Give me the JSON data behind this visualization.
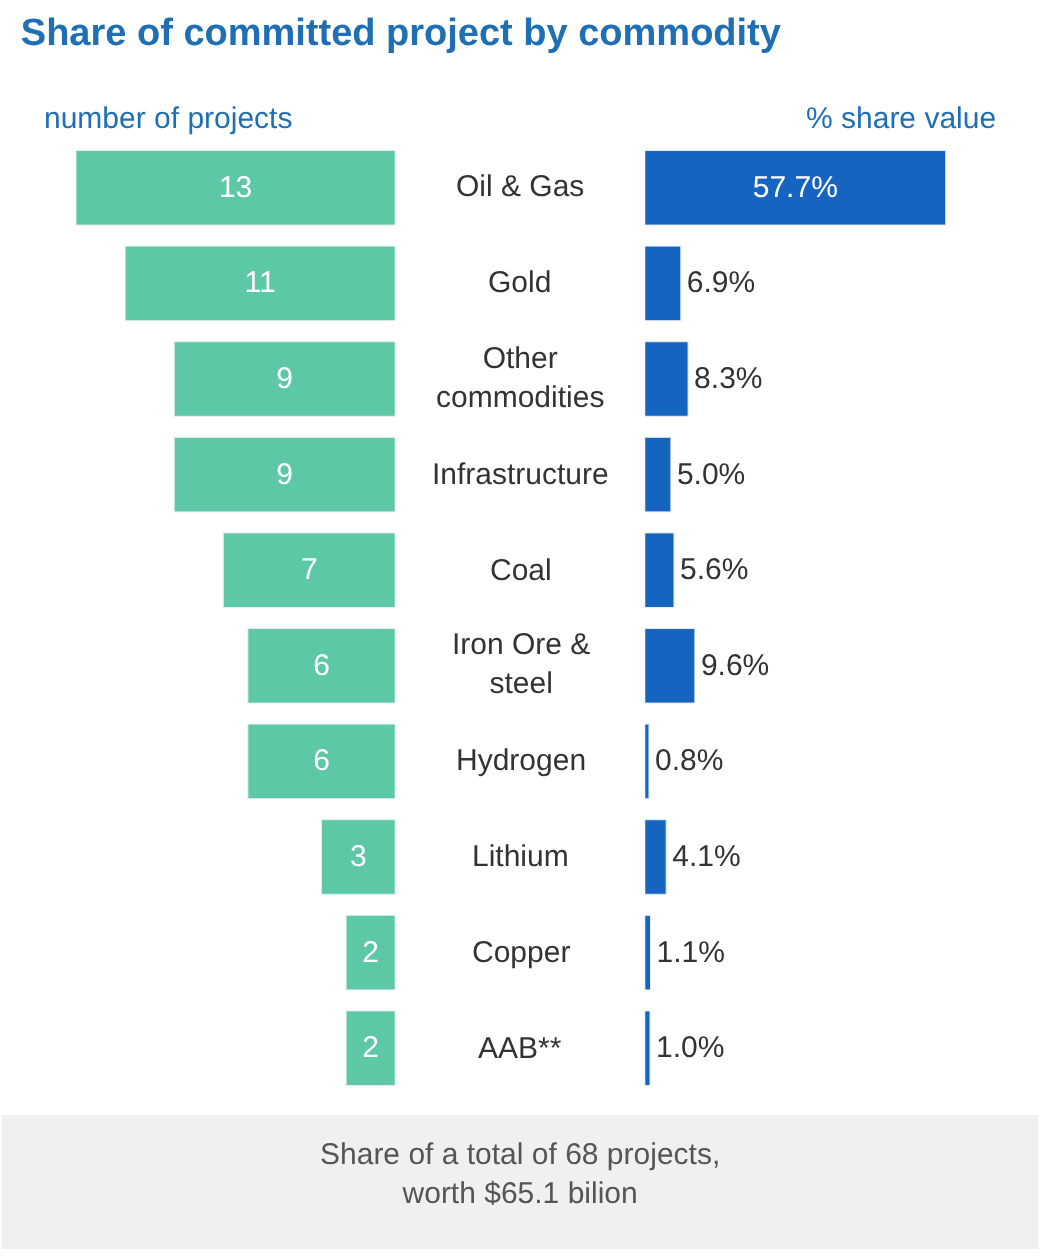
{
  "chart_data": [
    {
      "type": "bar",
      "orientation": "horizontal",
      "title": "Share of committed project by commodity",
      "subtitle": "number of projects",
      "categories": [
        "Oil & Gas",
        "Gold",
        "Other commodities",
        "Infrastructure",
        "Coal",
        "Iron Ore & steel",
        "Hydrogen",
        "Lithium",
        "Copper",
        "AAB**"
      ],
      "values": [
        13,
        11,
        9,
        9,
        7,
        6,
        6,
        3,
        2,
        2
      ],
      "color": "#5cc8a6",
      "data_labels": true,
      "tick_labels": "y",
      "annotations": [
        "Share of a total of 68 projects, worth $65.1 bilion"
      ]
    },
    {
      "type": "bar",
      "orientation": "horizontal",
      "subtitle": "% share value",
      "categories": [
        "Oil & Gas",
        "Gold",
        "Other commodities",
        "Infrastructure",
        "Coal",
        "Iron Ore & steel",
        "Hydrogen",
        "Lithium",
        "Copper",
        "AAB**"
      ],
      "values": [
        57.7,
        6.9,
        8.3,
        5.0,
        5.6,
        9.6,
        0.8,
        4.1,
        1.1,
        1.0
      ],
      "value_labels": [
        "57.7%",
        "6.9%",
        "8.3%",
        "5.0%",
        "5.6%",
        "9.6%",
        "0.8%",
        "4.1%",
        "1.1%",
        "1.0%"
      ],
      "color": "#1565c0",
      "tick_labels": false
    }
  ]
}
